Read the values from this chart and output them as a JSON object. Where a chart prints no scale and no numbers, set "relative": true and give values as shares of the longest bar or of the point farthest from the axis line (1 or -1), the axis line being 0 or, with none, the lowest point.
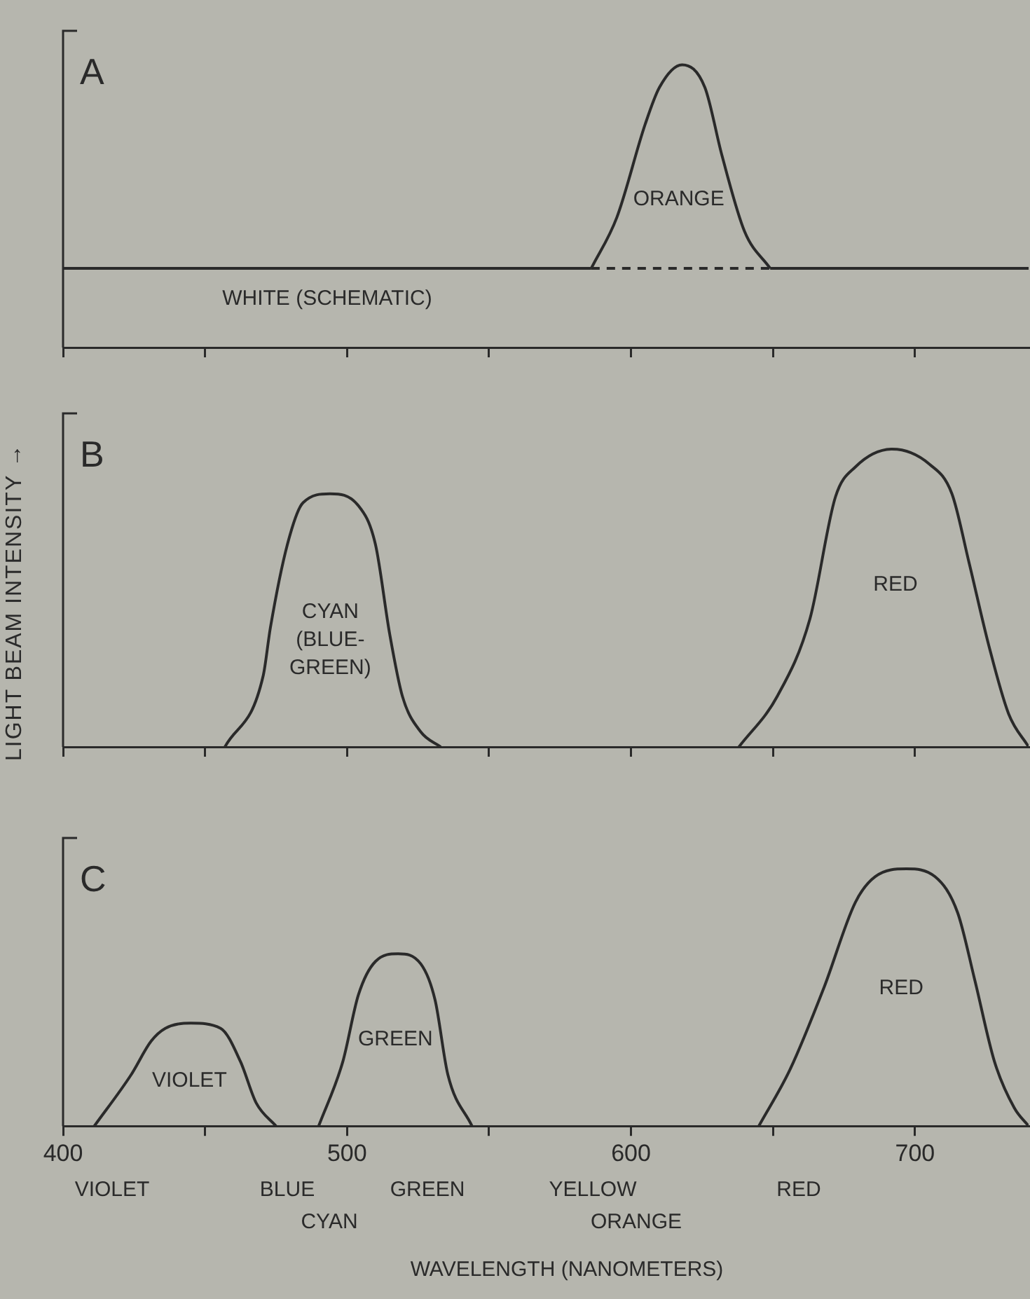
{
  "chart_data": [
    {
      "type": "line",
      "title": "A",
      "relative": true,
      "xlim": [
        400,
        740
      ],
      "xticks": [
        400,
        {
          "value": 450,
          "label": null
        },
        500,
        {
          "value": 550,
          "label": null
        },
        600,
        {
          "value": 650,
          "label": null
        },
        700
      ],
      "tick_labels": false,
      "series": [
        {
          "name": "WHITE (SCHEMATIC)",
          "color": "#2a2a2a",
          "x": [
            400,
            586
          ],
          "values": [
            0.28,
            0.28
          ]
        },
        {
          "color": "#2a2a2a",
          "line_style": "dashed",
          "x": [
            586,
            649
          ],
          "values": [
            0.28,
            0.28
          ]
        },
        {
          "color": "#2a2a2a",
          "x": [
            649,
            740
          ],
          "values": [
            0.28,
            0.28
          ]
        },
        {
          "name": "ORANGE",
          "color": "#2a2a2a",
          "x": [
            586,
            595,
            605,
            610,
            618,
            626,
            632,
            640,
            649
          ],
          "values": [
            0.28,
            0.46,
            0.79,
            0.92,
            1,
            0.92,
            0.68,
            0.41,
            0.28
          ]
        }
      ]
    },
    {
      "type": "line",
      "title": "B",
      "ylabel": "LIGHT BEAM INTENSITY →",
      "relative": true,
      "xlim": [
        400,
        740
      ],
      "xticks": [
        400,
        {
          "value": 450,
          "label": null
        },
        500,
        {
          "value": 550,
          "label": null
        },
        600,
        {
          "value": 650,
          "label": null
        },
        700
      ],
      "tick_labels": false,
      "series": [
        {
          "name": "CYAN (BLUE-GREEN)",
          "color": "#2a2a2a",
          "x": [
            457,
            470.5,
            473,
            479,
            484.5,
            494,
            504,
            510,
            515,
            519.5,
            526,
            533
          ],
          "values": [
            0,
            0.24,
            0.4,
            0.68,
            0.82,
            0.85,
            0.81,
            0.68,
            0.38,
            0.17,
            0.05,
            0
          ]
        },
        {
          "name": "RED",
          "color": "#2a2a2a",
          "x": [
            638,
            651.5,
            663,
            672,
            679,
            692,
            705,
            713,
            719,
            726,
            733,
            740
          ],
          "values": [
            0,
            0.17,
            0.43,
            0.84,
            0.94,
            1,
            0.95,
            0.85,
            0.62,
            0.34,
            0.11,
            0
          ]
        }
      ]
    },
    {
      "type": "line",
      "title": "C",
      "xlabel": "WAVELENGTH (NANOMETERS)",
      "relative": true,
      "xlim": [
        400,
        740
      ],
      "xticks": [
        400,
        {
          "value": 450,
          "label": null
        },
        500,
        {
          "value": 550,
          "label": null
        },
        600,
        {
          "value": 650,
          "label": null
        },
        700
      ],
      "tick_labels": "x",
      "annotations": [
        "VIOLET",
        "BLUE",
        "CYAN",
        "GREEN",
        "YELLOW",
        "ORANGE",
        "RED"
      ],
      "series": [
        {
          "name": "VIOLET",
          "color": "#2a2a2a",
          "x": [
            411,
            424,
            431,
            436,
            445,
            455.5,
            462.5,
            468,
            475
          ],
          "values": [
            0,
            0.2,
            0.33,
            0.38,
            0.4,
            0.38,
            0.25,
            0.09,
            0
          ]
        },
        {
          "name": "GREEN",
          "color": "#2a2a2a",
          "x": [
            490,
            498.5,
            504,
            510,
            518,
            526,
            531,
            535.5,
            544
          ],
          "values": [
            0,
            0.25,
            0.51,
            0.64,
            0.67,
            0.63,
            0.49,
            0.2,
            0
          ]
        },
        {
          "name": "RED",
          "color": "#2a2a2a",
          "x": [
            645,
            656,
            668,
            679,
            686,
            697,
            707,
            715,
            721,
            728,
            735,
            740
          ],
          "values": [
            0,
            0.22,
            0.54,
            0.87,
            0.97,
            1,
            0.97,
            0.83,
            0.57,
            0.25,
            0.07,
            0
          ]
        }
      ]
    }
  ]
}
